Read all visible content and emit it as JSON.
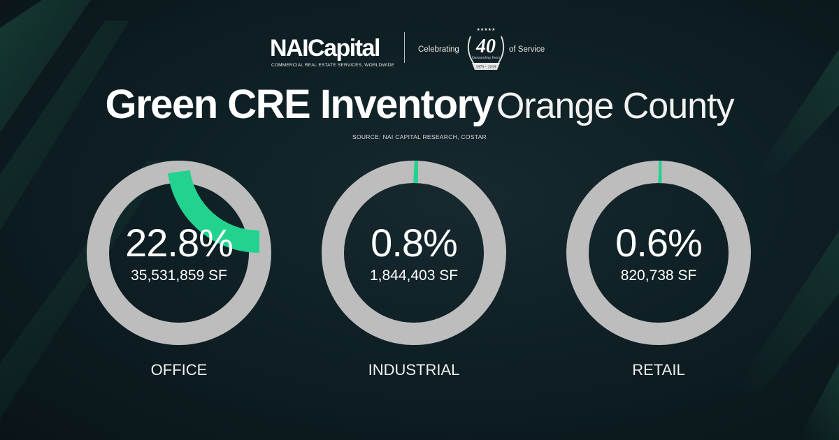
{
  "brand": {
    "logo": "NAICapital",
    "tagline": "COMMERCIAL REAL ESTATE SERVICES, WORLDWIDE",
    "celebrating": "Celebrating",
    "badge_number": "40",
    "badge_script": "Outstanding Years",
    "badge_years": "1979 - 2019",
    "of_service": "of Service"
  },
  "title_bold": "Green CRE Inventory",
  "title_light": "Orange County",
  "source": "SOURCE: NAI CAPITAL RESEARCH, COSTAR",
  "colors": {
    "accent": "#22d38f",
    "track": "#bdbdbd",
    "background": "#0f2025"
  },
  "chart_data": [
    {
      "type": "pie",
      "category": "OFFICE",
      "percent": 22.8,
      "percent_label": "22.8%",
      "sf_label": "35,531,859 SF"
    },
    {
      "type": "pie",
      "category": "INDUSTRIAL",
      "percent": 0.8,
      "percent_label": "0.8%",
      "sf_label": "1,844,403 SF"
    },
    {
      "type": "pie",
      "category": "RETAIL",
      "percent": 0.6,
      "percent_label": "0.6%",
      "sf_label": "820,738 SF"
    }
  ]
}
